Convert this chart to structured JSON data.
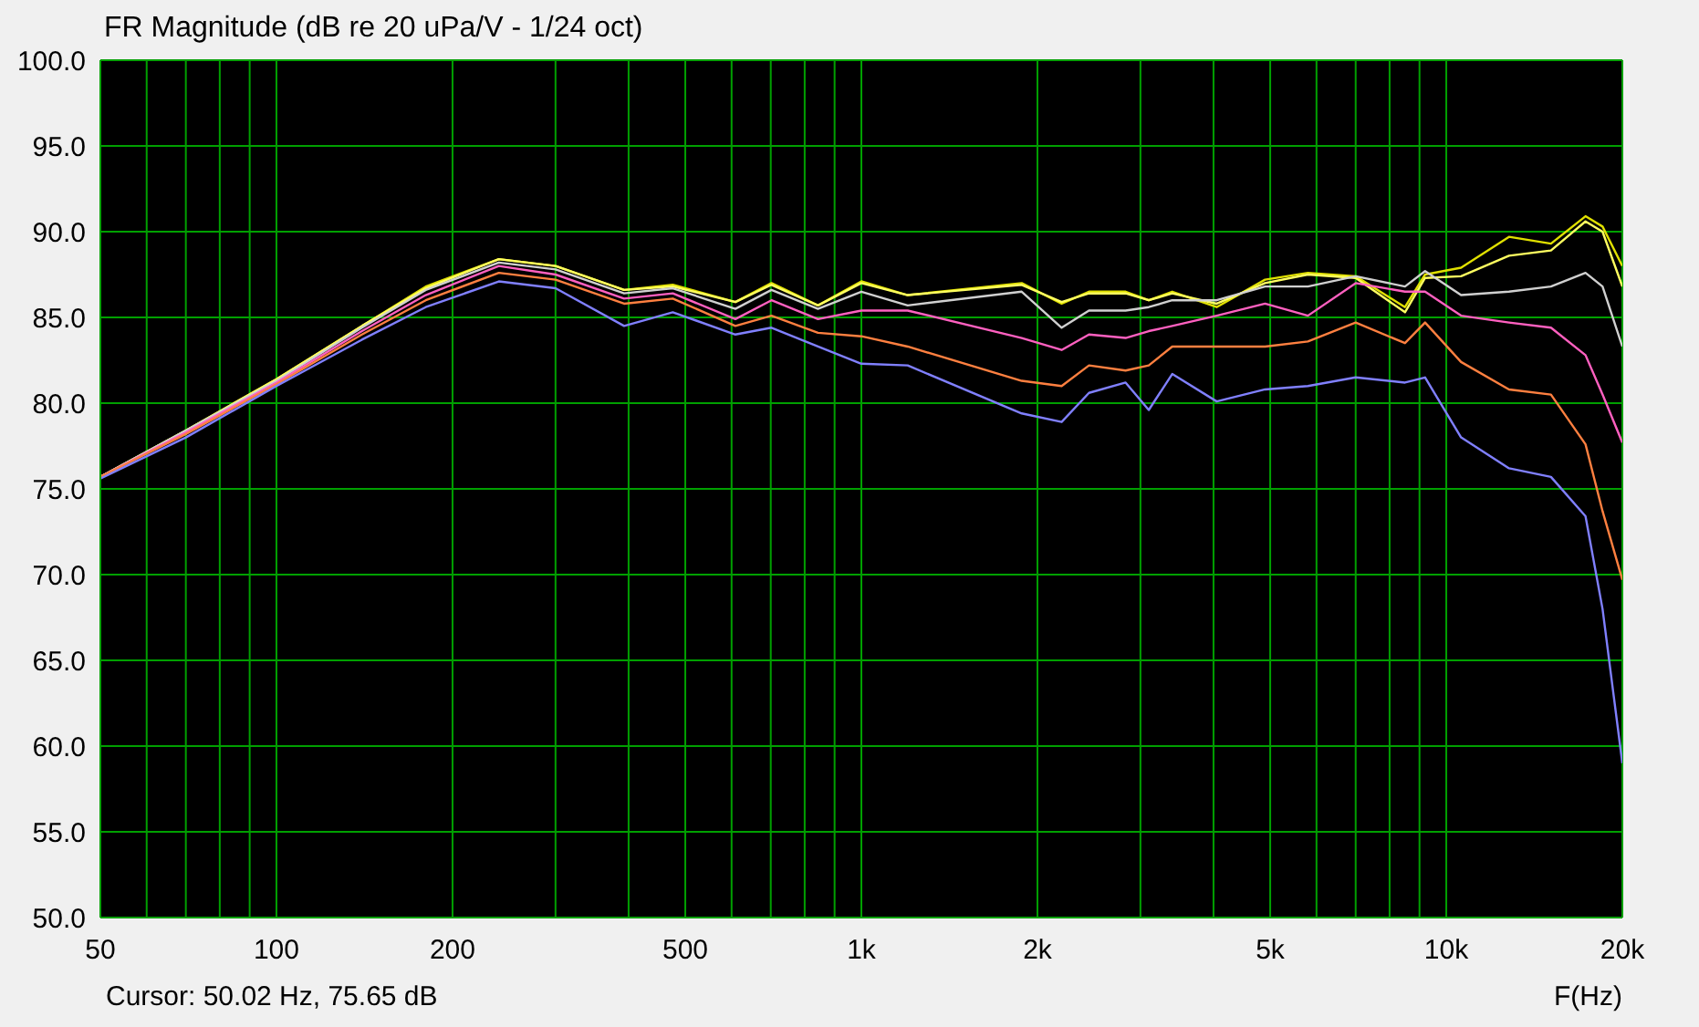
{
  "chart_data": {
    "type": "line",
    "title": "FR Magnitude (dB re 20 uPa/V - 1/24 oct)",
    "xlabel": "F(Hz)",
    "annotations": [
      "Cursor: 50.02 Hz, 75.65 dB"
    ],
    "log": "x",
    "grid": true,
    "xlim": [
      50,
      20000
    ],
    "xticks": [
      50,
      {
        "value": 60,
        "label": null
      },
      {
        "value": 70,
        "label": null
      },
      {
        "value": 80,
        "label": null
      },
      {
        "value": 90,
        "label": null
      },
      100,
      200,
      {
        "value": 300,
        "label": null
      },
      {
        "value": 400,
        "label": null
      },
      500,
      {
        "value": 600,
        "label": null
      },
      {
        "value": 700,
        "label": null
      },
      {
        "value": 800,
        "label": null
      },
      {
        "value": 900,
        "label": null
      },
      {
        "value": 1000,
        "label": "1k"
      },
      {
        "value": 2000,
        "label": "2k"
      },
      {
        "value": 3000,
        "label": null
      },
      {
        "value": 4000,
        "label": null
      },
      {
        "value": 5000,
        "label": "5k"
      },
      {
        "value": 6000,
        "label": null
      },
      {
        "value": 7000,
        "label": null
      },
      {
        "value": 8000,
        "label": null
      },
      {
        "value": 9000,
        "label": null
      },
      {
        "value": 10000,
        "label": "10k"
      },
      {
        "value": 20000,
        "label": "20k"
      }
    ],
    "ylim": [
      50,
      100
    ],
    "yticks": [
      {
        "value": 50,
        "label": "50.0"
      },
      {
        "value": 55,
        "label": "55.0"
      },
      {
        "value": 60,
        "label": "60.0"
      },
      {
        "value": 65,
        "label": "65.0"
      },
      {
        "value": 70,
        "label": "70.0"
      },
      {
        "value": 75,
        "label": "75.0"
      },
      {
        "value": 80,
        "label": "80.0"
      },
      {
        "value": 85,
        "label": "85.0"
      },
      {
        "value": 90,
        "label": "90.0"
      },
      {
        "value": 95,
        "label": "95.0"
      },
      {
        "value": 100,
        "label": "100.0"
      }
    ],
    "x": [
      50,
      70,
      100,
      140,
      180,
      240,
      300,
      393,
      476,
      609,
      702,
      843,
      1000,
      1200,
      1880,
      2200,
      2450,
      2830,
      3100,
      3400,
      4050,
      4900,
      5800,
      7000,
      8500,
      9200,
      10600,
      12800,
      15100,
      17300,
      18500,
      20000
    ],
    "series": [
      {
        "color": "#e0e000",
        "values": [
          75.7,
          78.4,
          81.4,
          84.5,
          86.8,
          88.4,
          88.0,
          86.6,
          86.9,
          85.9,
          87.0,
          85.7,
          87.1,
          86.3,
          87.0,
          85.8,
          86.5,
          86.5,
          86.0,
          86.5,
          85.6,
          87.2,
          87.6,
          87.4,
          85.6,
          87.5,
          87.9,
          89.7,
          89.3,
          90.9,
          90.3,
          88.0
        ]
      },
      {
        "color": "#ffff60",
        "values": [
          75.7,
          78.4,
          81.4,
          84.5,
          86.7,
          88.4,
          88.0,
          86.6,
          86.8,
          85.9,
          86.9,
          85.7,
          87.0,
          86.3,
          86.9,
          85.9,
          86.4,
          86.4,
          86.0,
          86.4,
          85.8,
          87.0,
          87.5,
          87.3,
          85.3,
          87.3,
          87.4,
          88.6,
          88.9,
          90.6,
          90.0,
          86.8
        ]
      },
      {
        "color": "#d0d0d0",
        "values": [
          75.7,
          78.4,
          81.3,
          84.4,
          86.6,
          88.2,
          87.8,
          86.4,
          86.7,
          85.5,
          86.6,
          85.5,
          86.5,
          85.7,
          86.5,
          84.4,
          85.4,
          85.4,
          85.6,
          86.0,
          86.0,
          86.8,
          86.8,
          87.4,
          86.8,
          87.7,
          86.3,
          86.5,
          86.8,
          87.6,
          86.8,
          83.3
        ]
      },
      {
        "color": "#ff60c0",
        "values": [
          75.7,
          78.3,
          81.2,
          84.2,
          86.3,
          88.0,
          87.5,
          86.1,
          86.4,
          84.9,
          86.0,
          84.9,
          85.4,
          85.4,
          83.8,
          83.1,
          84.0,
          83.8,
          84.2,
          84.5,
          85.1,
          85.8,
          85.1,
          87.0,
          86.5,
          86.5,
          85.1,
          84.7,
          84.4,
          82.8,
          80.5,
          77.7
        ]
      },
      {
        "color": "#ff8040",
        "values": [
          75.7,
          78.2,
          81.1,
          84.0,
          86.0,
          87.6,
          87.2,
          85.8,
          86.1,
          84.5,
          85.1,
          84.1,
          83.9,
          83.3,
          81.3,
          81.0,
          82.2,
          81.9,
          82.2,
          83.3,
          83.3,
          83.3,
          83.6,
          84.7,
          83.5,
          84.7,
          82.4,
          80.8,
          80.5,
          77.6,
          73.7,
          69.7
        ]
      },
      {
        "color": "#8080ff",
        "values": [
          75.6,
          78.0,
          81.0,
          83.7,
          85.6,
          87.1,
          86.7,
          84.5,
          85.3,
          84.0,
          84.4,
          83.3,
          82.3,
          82.2,
          79.4,
          78.9,
          80.6,
          81.2,
          79.6,
          81.7,
          80.1,
          80.8,
          81.0,
          81.5,
          81.2,
          81.5,
          78.0,
          76.2,
          75.7,
          73.4,
          68.0,
          59.0
        ]
      }
    ]
  }
}
